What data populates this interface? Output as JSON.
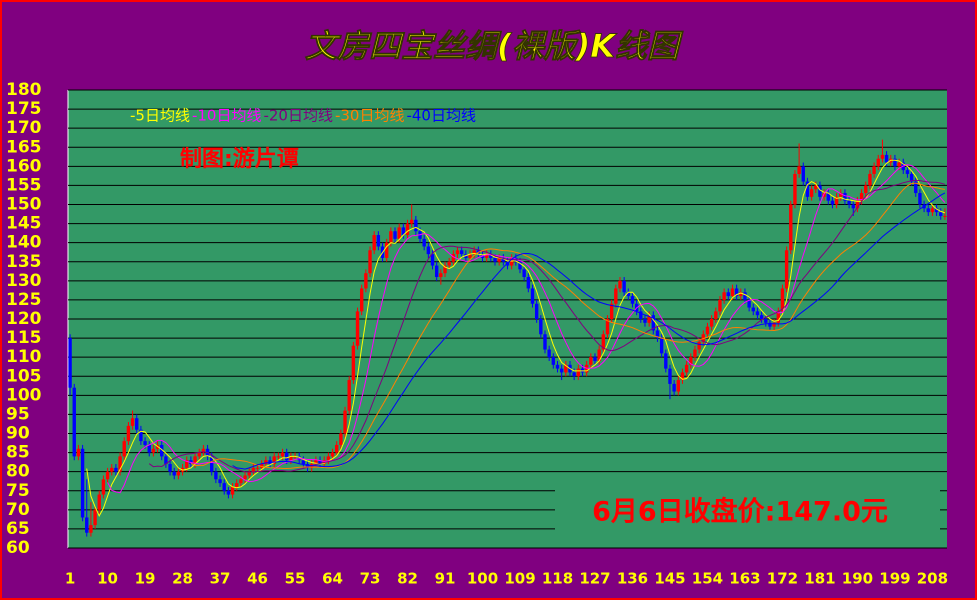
{
  "chart_data": {
    "type": "candlestick",
    "title": "文房四宝丝绸(裸版)K线图",
    "subtitle": "制图:游片谭",
    "annotation": "6月6日收盘价:147.0元",
    "up_color": "#ff0000",
    "down_color": "#0000ff",
    "grid": true,
    "ylim": [
      60,
      180
    ],
    "yticks": [
      60,
      65,
      70,
      75,
      80,
      85,
      90,
      95,
      100,
      105,
      110,
      115,
      120,
      125,
      130,
      135,
      140,
      145,
      150,
      155,
      160,
      165,
      170,
      175,
      180
    ],
    "xlim": [
      0.5,
      211.5
    ],
    "xticks": [
      1,
      10,
      19,
      28,
      37,
      46,
      55,
      64,
      73,
      82,
      91,
      100,
      109,
      118,
      127,
      136,
      145,
      154,
      163,
      172,
      181,
      190,
      199,
      208
    ],
    "series": [
      {
        "name": "-5日均线",
        "color": "#ffff00",
        "window": 5
      },
      {
        "name": "-10日均线",
        "color": "#ff00ff",
        "window": 10
      },
      {
        "name": "-20日均线",
        "color": "#800080",
        "window": 20
      },
      {
        "name": "-30日均线",
        "color": "#ff8000",
        "window": 30
      },
      {
        "name": "-40日均线",
        "color": "#0000ff",
        "window": 40
      }
    ],
    "ohlc": [
      [
        115,
        116,
        100,
        102
      ],
      [
        102,
        103,
        83,
        84
      ],
      [
        84,
        87,
        83,
        86
      ],
      [
        86,
        87,
        67,
        68
      ],
      [
        68,
        78,
        63,
        64
      ],
      [
        64,
        72,
        63,
        66
      ],
      [
        66,
        71,
        65,
        70
      ],
      [
        70,
        75,
        69,
        74
      ],
      [
        74,
        79,
        73,
        78
      ],
      [
        78,
        81,
        77,
        80
      ],
      [
        80,
        82,
        79,
        81
      ],
      [
        81,
        82,
        79,
        80
      ],
      [
        80,
        85,
        79,
        84
      ],
      [
        84,
        89,
        83,
        88
      ],
      [
        88,
        93,
        87,
        92
      ],
      [
        92,
        96,
        91,
        94
      ],
      [
        94,
        95,
        90,
        91
      ],
      [
        91,
        92,
        87,
        88
      ],
      [
        88,
        89,
        86,
        87
      ],
      [
        87,
        88,
        84,
        85
      ],
      [
        85,
        87,
        84,
        86
      ],
      [
        86,
        88,
        85,
        87
      ],
      [
        87,
        88,
        83,
        84
      ],
      [
        84,
        85,
        81,
        82
      ],
      [
        82,
        83,
        79,
        80
      ],
      [
        80,
        81,
        78,
        79
      ],
      [
        79,
        81,
        78,
        80
      ],
      [
        80,
        82,
        79,
        81
      ],
      [
        81,
        84,
        80,
        83
      ],
      [
        83,
        84,
        81,
        82
      ],
      [
        82,
        85,
        81,
        84
      ],
      [
        84,
        86,
        83,
        85
      ],
      [
        85,
        87,
        84,
        86
      ],
      [
        86,
        87,
        83,
        84
      ],
      [
        84,
        85,
        79,
        80
      ],
      [
        80,
        81,
        77,
        78
      ],
      [
        78,
        79,
        76,
        77
      ],
      [
        77,
        78,
        74,
        75
      ],
      [
        75,
        76,
        73,
        74
      ],
      [
        74,
        77,
        73,
        76
      ],
      [
        76,
        78,
        75,
        77
      ],
      [
        77,
        79,
        76,
        78
      ],
      [
        78,
        80,
        77,
        79
      ],
      [
        79,
        81,
        78,
        80
      ],
      [
        80,
        82,
        79,
        81
      ],
      [
        81,
        82,
        80,
        81
      ],
      [
        81,
        83,
        80,
        82
      ],
      [
        82,
        84,
        81,
        83
      ],
      [
        83,
        84,
        81,
        82
      ],
      [
        82,
        85,
        81,
        84
      ],
      [
        84,
        85,
        83,
        84
      ],
      [
        84,
        86,
        83,
        85
      ],
      [
        85,
        86,
        82,
        83
      ],
      [
        83,
        85,
        82,
        84
      ],
      [
        84,
        85,
        83,
        84
      ],
      [
        84,
        85,
        82,
        83
      ],
      [
        83,
        84,
        81,
        82
      ],
      [
        82,
        83,
        80,
        81
      ],
      [
        81,
        83,
        80,
        82
      ],
      [
        82,
        84,
        81,
        83
      ],
      [
        83,
        84,
        81,
        82
      ],
      [
        82,
        84,
        81,
        83
      ],
      [
        83,
        85,
        82,
        84
      ],
      [
        84,
        86,
        83,
        85
      ],
      [
        85,
        88,
        84,
        87
      ],
      [
        87,
        91,
        86,
        90
      ],
      [
        90,
        97,
        89,
        96
      ],
      [
        96,
        105,
        95,
        104
      ],
      [
        104,
        114,
        103,
        113
      ],
      [
        113,
        123,
        112,
        122
      ],
      [
        122,
        129,
        121,
        128
      ],
      [
        128,
        133,
        127,
        132
      ],
      [
        132,
        139,
        131,
        138
      ],
      [
        138,
        143,
        137,
        142
      ],
      [
        142,
        143,
        138,
        139
      ],
      [
        139,
        140,
        135,
        136
      ],
      [
        136,
        141,
        135,
        140
      ],
      [
        140,
        144,
        139,
        143
      ],
      [
        143,
        144,
        140,
        141
      ],
      [
        141,
        145,
        140,
        144
      ],
      [
        144,
        145,
        141,
        142
      ],
      [
        142,
        146,
        141,
        145
      ],
      [
        145,
        150,
        144,
        146
      ],
      [
        146,
        147,
        142,
        143
      ],
      [
        143,
        144,
        140,
        141
      ],
      [
        141,
        142,
        138,
        139
      ],
      [
        139,
        140,
        136,
        137
      ],
      [
        137,
        138,
        133,
        134
      ],
      [
        134,
        135,
        130,
        131
      ],
      [
        131,
        133,
        129,
        132
      ],
      [
        132,
        135,
        131,
        134
      ],
      [
        134,
        136,
        133,
        135
      ],
      [
        135,
        138,
        134,
        137
      ],
      [
        137,
        139,
        136,
        138
      ],
      [
        138,
        139,
        136,
        137
      ],
      [
        137,
        138,
        135,
        136
      ],
      [
        136,
        138,
        135,
        137
      ],
      [
        137,
        139,
        136,
        138
      ],
      [
        138,
        139,
        136,
        137
      ],
      [
        137,
        138,
        135,
        136
      ],
      [
        136,
        138,
        135,
        137
      ],
      [
        137,
        138,
        135,
        136
      ],
      [
        136,
        137,
        134,
        135
      ],
      [
        135,
        137,
        134,
        136
      ],
      [
        136,
        137,
        134,
        135
      ],
      [
        135,
        136,
        133,
        134
      ],
      [
        134,
        137,
        133,
        136
      ],
      [
        136,
        137,
        134,
        135
      ],
      [
        135,
        136,
        132,
        133
      ],
      [
        133,
        134,
        130,
        131
      ],
      [
        131,
        132,
        127,
        128
      ],
      [
        128,
        129,
        123,
        124
      ],
      [
        124,
        125,
        119,
        120
      ],
      [
        120,
        121,
        115,
        116
      ],
      [
        116,
        117,
        111,
        112
      ],
      [
        112,
        113,
        109,
        110
      ],
      [
        110,
        111,
        107,
        108
      ],
      [
        108,
        109,
        106,
        107
      ],
      [
        107,
        108,
        104,
        106
      ],
      [
        106,
        109,
        105,
        108
      ],
      [
        108,
        109,
        105,
        106
      ],
      [
        106,
        107,
        104,
        105
      ],
      [
        105,
        108,
        104,
        107
      ],
      [
        107,
        108,
        105,
        106
      ],
      [
        106,
        109,
        105,
        108
      ],
      [
        108,
        111,
        107,
        110
      ],
      [
        110,
        111,
        108,
        109
      ],
      [
        109,
        113,
        108,
        112
      ],
      [
        112,
        117,
        111,
        116
      ],
      [
        116,
        121,
        115,
        120
      ],
      [
        120,
        125,
        119,
        124
      ],
      [
        124,
        129,
        123,
        128
      ],
      [
        128,
        131,
        127,
        130
      ],
      [
        130,
        131,
        126,
        127
      ],
      [
        127,
        128,
        125,
        126
      ],
      [
        126,
        127,
        123,
        124
      ],
      [
        124,
        125,
        121,
        122
      ],
      [
        122,
        123,
        119,
        120
      ],
      [
        120,
        121,
        118,
        119
      ],
      [
        119,
        122,
        118,
        121
      ],
      [
        121,
        122,
        116,
        117
      ],
      [
        117,
        118,
        114,
        115
      ],
      [
        115,
        116,
        110,
        111
      ],
      [
        111,
        112,
        106,
        107
      ],
      [
        107,
        108,
        99,
        103
      ],
      [
        103,
        104,
        100,
        101
      ],
      [
        101,
        105,
        100,
        104
      ],
      [
        104,
        107,
        103,
        106
      ],
      [
        106,
        109,
        105,
        108
      ],
      [
        108,
        111,
        107,
        110
      ],
      [
        110,
        113,
        109,
        112
      ],
      [
        112,
        115,
        111,
        114
      ],
      [
        114,
        117,
        113,
        116
      ],
      [
        116,
        119,
        115,
        118
      ],
      [
        118,
        121,
        117,
        120
      ],
      [
        120,
        123,
        119,
        122
      ],
      [
        122,
        126,
        121,
        125
      ],
      [
        125,
        128,
        124,
        127
      ],
      [
        127,
        128,
        125,
        126
      ],
      [
        126,
        129,
        125,
        128
      ],
      [
        128,
        129,
        125,
        126
      ],
      [
        126,
        128,
        125,
        127
      ],
      [
        127,
        128,
        124,
        125
      ],
      [
        125,
        126,
        122,
        123
      ],
      [
        123,
        124,
        121,
        122
      ],
      [
        122,
        123,
        120,
        121
      ],
      [
        121,
        122,
        119,
        120
      ],
      [
        120,
        121,
        118,
        119
      ],
      [
        119,
        120,
        117,
        118
      ],
      [
        118,
        120,
        117,
        119
      ],
      [
        119,
        123,
        118,
        122
      ],
      [
        122,
        129,
        121,
        128
      ],
      [
        128,
        139,
        127,
        138
      ],
      [
        138,
        151,
        137,
        150
      ],
      [
        150,
        159,
        149,
        158
      ],
      [
        158,
        166,
        157,
        160
      ],
      [
        160,
        161,
        155,
        156
      ],
      [
        156,
        157,
        151,
        152
      ],
      [
        152,
        155,
        151,
        154
      ],
      [
        154,
        156,
        153,
        155
      ],
      [
        155,
        156,
        151,
        152
      ],
      [
        152,
        154,
        151,
        153
      ],
      [
        153,
        154,
        150,
        151
      ],
      [
        151,
        152,
        149,
        150
      ],
      [
        150,
        153,
        149,
        152
      ],
      [
        152,
        154,
        151,
        153
      ],
      [
        153,
        154,
        150,
        151
      ],
      [
        151,
        152,
        149,
        150
      ],
      [
        150,
        151,
        147,
        149
      ],
      [
        149,
        152,
        148,
        151
      ],
      [
        151,
        154,
        150,
        153
      ],
      [
        153,
        156,
        152,
        155
      ],
      [
        155,
        159,
        154,
        158
      ],
      [
        158,
        161,
        157,
        160
      ],
      [
        160,
        163,
        159,
        162
      ],
      [
        162,
        167,
        161,
        163
      ],
      [
        163,
        164,
        160,
        161
      ],
      [
        161,
        163,
        160,
        162
      ],
      [
        162,
        163,
        159,
        160
      ],
      [
        160,
        162,
        159,
        161
      ],
      [
        161,
        162,
        158,
        159
      ],
      [
        159,
        160,
        157,
        158
      ],
      [
        158,
        159,
        155,
        156
      ],
      [
        156,
        157,
        152,
        153
      ],
      [
        153,
        154,
        149,
        150
      ],
      [
        150,
        151,
        148,
        149
      ],
      [
        149,
        150,
        147,
        148
      ],
      [
        148,
        150,
        147,
        149
      ],
      [
        149,
        150,
        147,
        148
      ],
      [
        148,
        149,
        146,
        147
      ],
      [
        147,
        149,
        146,
        147
      ]
    ]
  }
}
